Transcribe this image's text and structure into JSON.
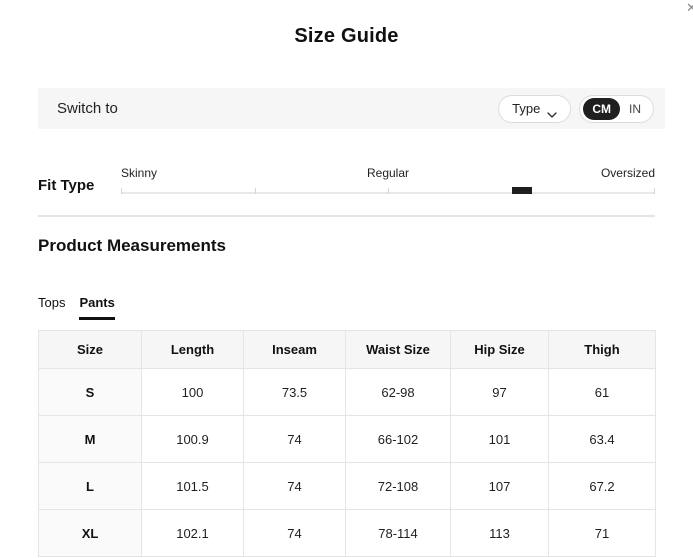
{
  "page": {
    "title": "Size Guide"
  },
  "close": {
    "icon_glyph": "✕"
  },
  "switch_bar": {
    "label": "Switch to",
    "type_button": {
      "label": "Type"
    },
    "unit_toggle": {
      "options": [
        "CM",
        "IN"
      ],
      "selected": "CM"
    }
  },
  "fit_type": {
    "label": "Fit Type",
    "options": [
      "Skinny",
      "Regular",
      "Oversized"
    ],
    "marker_position_percent": 75
  },
  "measurements": {
    "heading": "Product Measurements",
    "tabs": [
      {
        "label": "Tops",
        "active": false
      },
      {
        "label": "Pants",
        "active": true
      }
    ],
    "table": {
      "columns": [
        "Size",
        "Length",
        "Inseam",
        "Waist Size",
        "Hip Size",
        "Thigh"
      ],
      "rows": [
        [
          "S",
          "100",
          "73.5",
          "62-98",
          "97",
          "61"
        ],
        [
          "M",
          "100.9",
          "74",
          "66-102",
          "101",
          "63.4"
        ],
        [
          "L",
          "101.5",
          "74",
          "72-108",
          "107",
          "67.2"
        ],
        [
          "XL",
          "102.1",
          "74",
          "78-114",
          "113",
          "71"
        ]
      ]
    }
  },
  "colors": {
    "accent": "#1f1f1f",
    "bar_background": "#f6f6f6",
    "table_border": "#e5e5e5",
    "header_background": "#f6f6f6",
    "size_column_background": "#fafafa"
  }
}
